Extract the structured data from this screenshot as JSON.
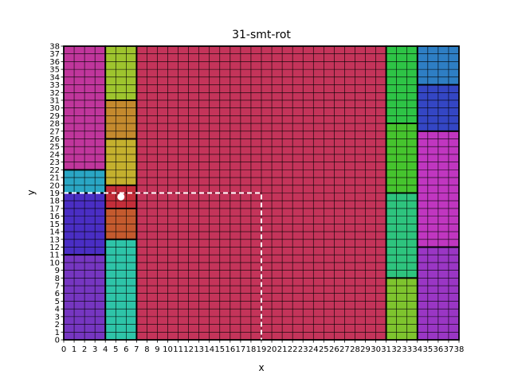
{
  "chart_data": {
    "type": "heatmap",
    "title": "31-smt-rot",
    "xlabel": "x",
    "ylabel": "y",
    "xlim": [
      0,
      38
    ],
    "ylim": [
      0,
      38
    ],
    "grid": true,
    "x_ticks": [
      "0",
      "1",
      "2",
      "3",
      "4",
      "5",
      "6",
      "7",
      "8",
      "9",
      "10",
      "11",
      "12",
      "13",
      "14",
      "15",
      "16",
      "17",
      "18",
      "19",
      "20",
      "21",
      "22",
      "23",
      "24",
      "25",
      "26",
      "27",
      "28",
      "29",
      "30",
      "31",
      "32",
      "33",
      "34",
      "35",
      "36",
      "37",
      "38"
    ],
    "y_ticks": [
      "0",
      "1",
      "2",
      "3",
      "4",
      "5",
      "6",
      "7",
      "8",
      "9",
      "10",
      "11",
      "12",
      "13",
      "14",
      "15",
      "16",
      "17",
      "18",
      "19",
      "20",
      "21",
      "22",
      "23",
      "24",
      "25",
      "26",
      "27",
      "28",
      "29",
      "30",
      "31",
      "32",
      "33",
      "34",
      "35",
      "36",
      "37",
      "38"
    ],
    "rectangles": [
      {
        "x0": 0,
        "x1": 4,
        "y0": 0,
        "y1": 11,
        "color": "#7636c1"
      },
      {
        "x0": 0,
        "x1": 4,
        "y0": 11,
        "y1": 19,
        "color": "#4a2ec4"
      },
      {
        "x0": 0,
        "x1": 4,
        "y0": 19,
        "y1": 22,
        "color": "#2aa6c4"
      },
      {
        "x0": 0,
        "x1": 4,
        "y0": 22,
        "y1": 38,
        "color": "#c0369c"
      },
      {
        "x0": 4,
        "x1": 7,
        "y0": 0,
        "y1": 13,
        "color": "#2ec4a8"
      },
      {
        "x0": 4,
        "x1": 7,
        "y0": 13,
        "y1": 17,
        "color": "#c45a2e"
      },
      {
        "x0": 4,
        "x1": 7,
        "y0": 17,
        "y1": 20,
        "color": "#c42e3a"
      },
      {
        "x0": 4,
        "x1": 7,
        "y0": 20,
        "y1": 26,
        "color": "#c4b02e"
      },
      {
        "x0": 4,
        "x1": 7,
        "y0": 26,
        "y1": 31,
        "color": "#c48a2e"
      },
      {
        "x0": 4,
        "x1": 7,
        "y0": 31,
        "y1": 38,
        "color": "#9ec42e"
      },
      {
        "x0": 7,
        "x1": 31,
        "y0": 0,
        "y1": 38,
        "color": "#c4345a"
      },
      {
        "x0": 31,
        "x1": 34,
        "y0": 0,
        "y1": 8,
        "color": "#7ec42e"
      },
      {
        "x0": 31,
        "x1": 34,
        "y0": 8,
        "y1": 19,
        "color": "#2ec47e"
      },
      {
        "x0": 31,
        "x1": 34,
        "y0": 19,
        "y1": 28,
        "color": "#46c42e"
      },
      {
        "x0": 31,
        "x1": 34,
        "y0": 28,
        "y1": 38,
        "color": "#2ec446"
      },
      {
        "x0": 34,
        "x1": 38,
        "y0": 0,
        "y1": 12,
        "color": "#9a36c4"
      },
      {
        "x0": 34,
        "x1": 38,
        "y0": 12,
        "y1": 27,
        "color": "#c036c0"
      },
      {
        "x0": 34,
        "x1": 38,
        "y0": 27,
        "y1": 33,
        "color": "#3446c4"
      },
      {
        "x0": 34,
        "x1": 38,
        "y0": 33,
        "y1": 38,
        "color": "#2e7ec4"
      }
    ],
    "marker": {
      "x": 5.5,
      "y": 18.5,
      "color": "#ffffff"
    },
    "dashed_guide": {
      "x": 19,
      "y": 19,
      "color": "#ffffff"
    }
  }
}
